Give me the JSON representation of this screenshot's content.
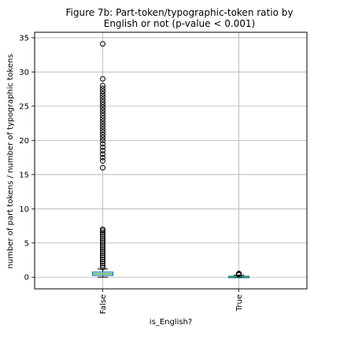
{
  "chart_data": {
    "type": "box",
    "title_lines": [
      "Figure 7b: Part-token/typographic-token ratio by",
      "English or not (p-value < 0.001)"
    ],
    "xlabel": "is_English?",
    "ylabel": "number of part tokens / number of typographic tokens",
    "categories": [
      "False",
      "True"
    ],
    "ylim": [
      -1.7,
      35.8
    ],
    "yticks": [
      0,
      5,
      10,
      15,
      20,
      25,
      30,
      35
    ],
    "grid": true,
    "colors": {
      "box": "#1f77b4",
      "median": "#2ca02c",
      "whisker": "#000000",
      "flier": "#000000"
    },
    "boxes": [
      {
        "category": "False",
        "q1": 0.25,
        "median": 0.5,
        "q3": 0.75,
        "whislo": 0.0,
        "whishi": 1.2,
        "fliers": [
          34.1,
          29.0,
          28.0,
          27.6,
          27.2,
          26.8,
          26.4,
          26.0,
          25.6,
          25.2,
          24.8,
          24.4,
          24.0,
          23.6,
          23.2,
          22.8,
          22.4,
          22.0,
          21.6,
          21.2,
          20.8,
          20.4,
          20.0,
          19.5,
          19.0,
          18.5,
          18.0,
          17.5,
          17.0,
          16.0,
          7.0,
          6.8,
          6.5,
          6.2,
          5.9,
          5.6,
          5.3,
          5.0,
          4.7,
          4.4,
          4.1,
          3.8,
          3.5,
          3.2,
          2.9,
          2.6,
          2.3,
          2.0,
          1.7,
          1.4
        ]
      },
      {
        "category": "True",
        "q1": 0.02,
        "median": 0.08,
        "q3": 0.15,
        "whislo": 0.0,
        "whishi": 0.3,
        "fliers": [
          0.35,
          0.4,
          0.45,
          0.5,
          0.55
        ]
      }
    ]
  }
}
